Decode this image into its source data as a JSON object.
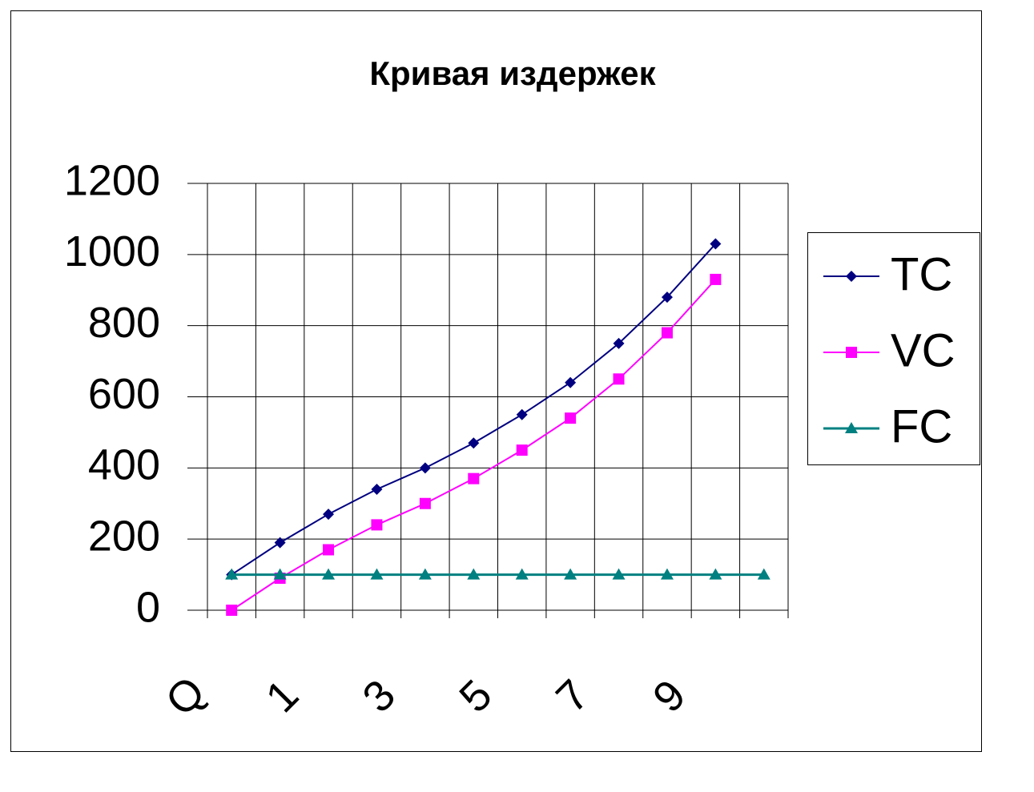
{
  "chart_data": {
    "type": "line",
    "title": "Кривая издержек",
    "categories": [
      "Q",
      null,
      "1",
      null,
      "3",
      null,
      "5",
      null,
      "7",
      null,
      "9",
      null
    ],
    "series": [
      {
        "name": "TC",
        "color": "#000080",
        "marker": "diamond",
        "values": [
          100,
          190,
          270,
          340,
          400,
          470,
          550,
          640,
          750,
          880,
          1030,
          null
        ]
      },
      {
        "name": "VC",
        "color": "#ff00ff",
        "marker": "square",
        "values": [
          0,
          90,
          170,
          240,
          300,
          370,
          450,
          540,
          650,
          780,
          930,
          null
        ]
      },
      {
        "name": "FC",
        "color": "#008080",
        "marker": "triangle",
        "values": [
          100,
          100,
          100,
          100,
          100,
          100,
          100,
          100,
          100,
          100,
          100,
          100
        ]
      }
    ],
    "ylim": [
      0,
      1200
    ],
    "yticks": [
      0,
      200,
      400,
      600,
      800,
      1000,
      1200
    ],
    "grid": true,
    "legend": "right"
  }
}
